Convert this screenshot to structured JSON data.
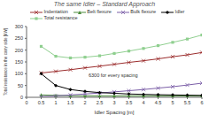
{
  "chart_data": {
    "type": "line",
    "title": "The same Idler – Standard Approach",
    "x_label": "Idler Spacing [m]",
    "y_label": "Total resistance in the carry side [kW]",
    "annotation": "6300 for every spacing",
    "x": [
      0.5,
      1,
      1.5,
      2,
      2.5,
      3,
      3.5,
      4,
      4.5,
      5,
      5.5,
      6
    ],
    "series": [
      {
        "name": "Indentation",
        "color": "#9b2c2c",
        "marker": "x",
        "values": [
          103,
          110,
          117,
          125,
          132,
          140,
          148,
          155,
          163,
          172,
          180,
          190
        ]
      },
      {
        "name": "Belt flexure",
        "color": "#4a8a3a",
        "marker": "triangle",
        "values": [
          10,
          8,
          7,
          6,
          6,
          6,
          6,
          6,
          6,
          6,
          6,
          6
        ]
      },
      {
        "name": "Bulk flexure",
        "color": "#7b5ea7",
        "marker": "x",
        "values": [
          3,
          6,
          10,
          14,
          18,
          23,
          28,
          33,
          39,
          45,
          52,
          60
        ]
      },
      {
        "name": "Idler",
        "color": "#000000",
        "marker": "diamond",
        "values": [
          100,
          50,
          33,
          25,
          20,
          17,
          14,
          12.5,
          11,
          10,
          9,
          8
        ]
      },
      {
        "name": "Total resistance",
        "color": "#8fcf8f",
        "marker": "square",
        "values": [
          216,
          174,
          167,
          170,
          176,
          186,
          196,
          207,
          219,
          233,
          247,
          264
        ]
      }
    ],
    "xlim": [
      0,
      6
    ],
    "xticks": [
      0,
      0.5,
      1,
      1.5,
      2,
      2.5,
      3,
      3.5,
      4,
      4.5,
      5,
      5.5,
      6
    ],
    "ylim": [
      0,
      300
    ],
    "yticks": [
      0,
      50,
      100,
      150,
      200,
      250,
      300
    ],
    "grid": false
  }
}
